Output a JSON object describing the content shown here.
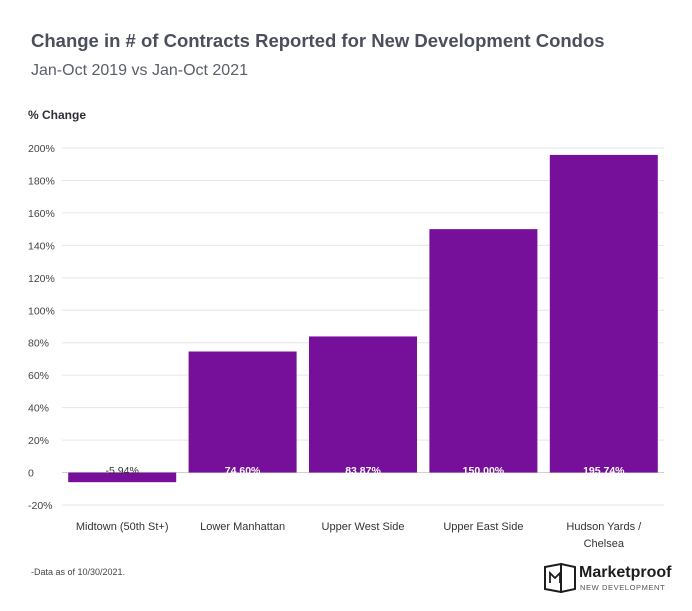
{
  "chart_data": {
    "type": "bar",
    "title": "Change in # of Contracts Reported for New Development Condos",
    "subtitle": "Jan-Oct 2019 vs Jan-Oct 2021",
    "ylabel": "% Change",
    "xlabel": "",
    "categories": [
      "Midtown (50th St+)",
      "Lower Manhattan",
      "Upper West Side",
      "Upper East Side",
      "Hudson Yards / Chelsea"
    ],
    "values": [
      -5.94,
      74.6,
      83.87,
      150.0,
      195.74
    ],
    "data_labels": [
      "-5.94%",
      "74.60%",
      "83.87%",
      "150.00%",
      "195.74%"
    ],
    "ylim": [
      -20,
      200
    ],
    "yticks": [
      -20,
      0,
      20,
      40,
      60,
      80,
      100,
      120,
      140,
      160,
      180,
      200
    ],
    "ytick_labels": [
      "-20%",
      "0",
      "20%",
      "40%",
      "60%",
      "80%",
      "100%",
      "120%",
      "140%",
      "160%",
      "180%",
      "200%"
    ],
    "grid": true,
    "bar_color": "#76109a"
  },
  "footnote": "-Data as of 10/30/2021.",
  "logo": {
    "name": "Marketproof",
    "tagline": "NEW DEVELOPMENT",
    "icon": "marketproof-logo-icon"
  }
}
